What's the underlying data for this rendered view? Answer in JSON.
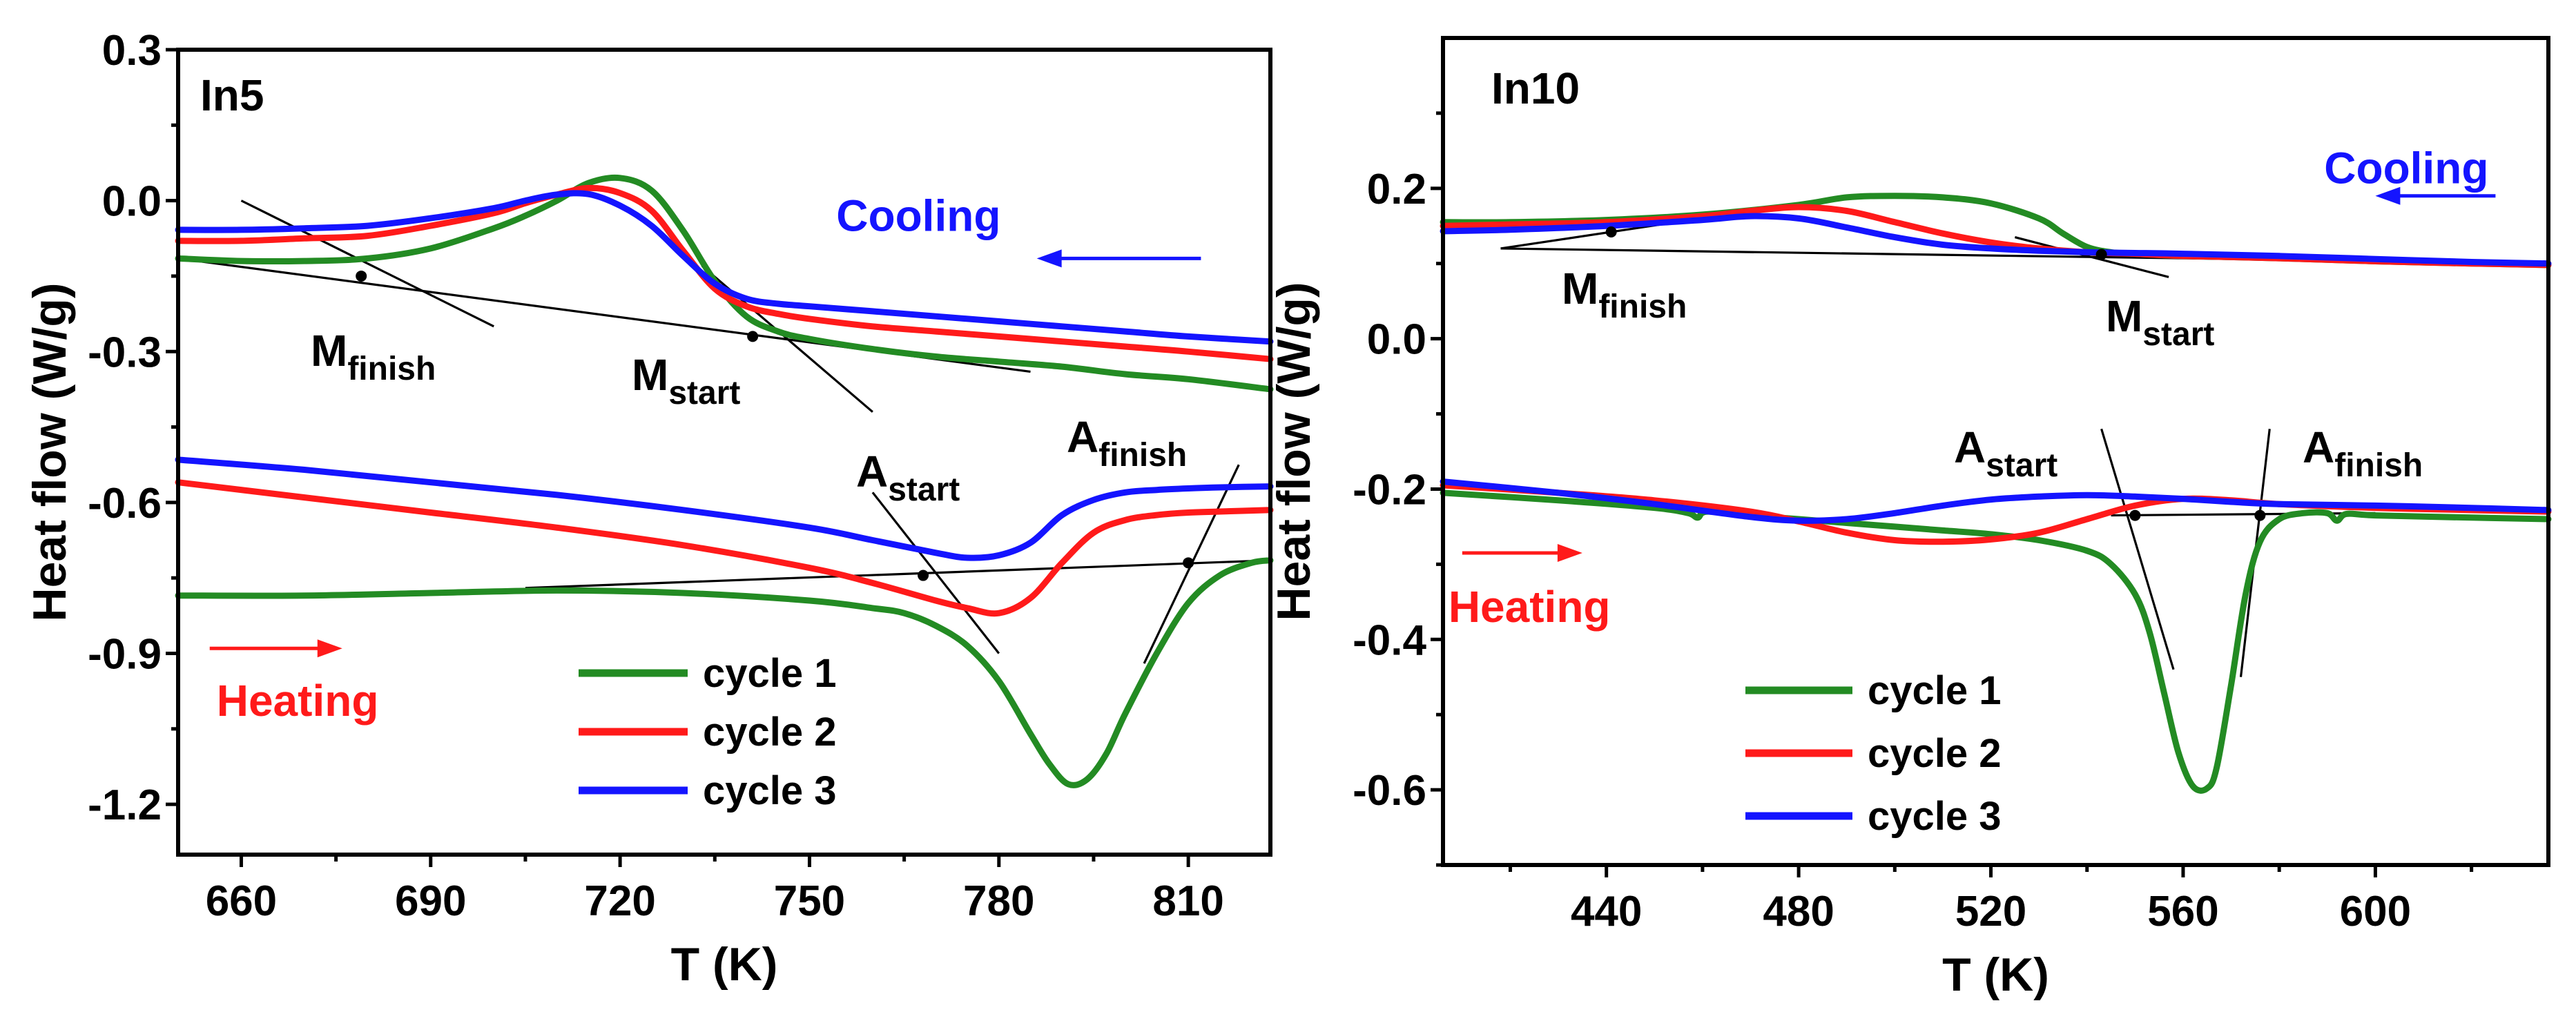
{
  "colors": {
    "cycle 1": "#238b23",
    "cycle 2": "#ff1a1a",
    "cycle 3": "#1414ff",
    "cooling": "#1414ff",
    "heating": "#ff1a1a"
  },
  "chart_data": [
    {
      "type": "line",
      "panel_label": "In5",
      "xlabel": "T (K)",
      "ylabel": "Heat flow (W/g)",
      "xlim": [
        650,
        823
      ],
      "ylim": [
        -1.3,
        0.3
      ],
      "xticks": [
        660,
        690,
        720,
        750,
        780,
        810
      ],
      "yticks": [
        0.3,
        0.0,
        -0.3,
        -0.6,
        -0.9,
        -1.2
      ],
      "ytick_labels": [
        "0.3",
        "0.0",
        "-0.3",
        "-0.6",
        "-0.9",
        "-1.2"
      ],
      "legend": [
        "cycle 1",
        "cycle 2",
        "cycle 3"
      ],
      "direction_labels": {
        "cooling": {
          "text": "Cooling",
          "arrow_from": 812,
          "arrow_to": 786,
          "arrow_y": -0.115
        },
        "heating": {
          "text": "Heating",
          "arrow_from": 655,
          "arrow_to": 676,
          "arrow_y": -0.89
        }
      },
      "series": [
        {
          "name": "cycle 1",
          "branch": "cooling",
          "x": [
            650,
            660,
            670,
            680,
            690,
            700,
            705,
            710,
            715,
            720,
            725,
            730,
            735,
            740,
            745,
            750,
            760,
            770,
            780,
            790,
            800,
            810,
            823
          ],
          "y": [
            -0.115,
            -0.12,
            -0.12,
            -0.115,
            -0.095,
            -0.055,
            -0.03,
            0.0,
            0.035,
            0.045,
            0.02,
            -0.06,
            -0.16,
            -0.23,
            -0.26,
            -0.275,
            -0.295,
            -0.31,
            -0.32,
            -0.33,
            -0.345,
            -0.355,
            -0.375
          ]
        },
        {
          "name": "cycle 2",
          "branch": "cooling",
          "x": [
            650,
            660,
            670,
            680,
            690,
            700,
            705,
            710,
            715,
            720,
            725,
            730,
            735,
            740,
            745,
            750,
            760,
            770,
            780,
            790,
            800,
            810,
            823
          ],
          "y": [
            -0.08,
            -0.08,
            -0.075,
            -0.07,
            -0.05,
            -0.025,
            -0.005,
            0.012,
            0.025,
            0.015,
            -0.02,
            -0.1,
            -0.175,
            -0.21,
            -0.225,
            -0.235,
            -0.25,
            -0.26,
            -0.27,
            -0.28,
            -0.29,
            -0.3,
            -0.315
          ]
        },
        {
          "name": "cycle 3",
          "branch": "cooling",
          "x": [
            650,
            660,
            670,
            680,
            690,
            700,
            705,
            710,
            715,
            720,
            725,
            730,
            735,
            740,
            745,
            750,
            760,
            770,
            780,
            790,
            800,
            810,
            823
          ],
          "y": [
            -0.058,
            -0.058,
            -0.055,
            -0.05,
            -0.035,
            -0.015,
            0.0,
            0.012,
            0.013,
            -0.01,
            -0.05,
            -0.11,
            -0.165,
            -0.195,
            -0.205,
            -0.21,
            -0.22,
            -0.23,
            -0.24,
            -0.25,
            -0.26,
            -0.27,
            -0.28
          ]
        },
        {
          "name": "cycle 1",
          "branch": "heating",
          "x": [
            650,
            670,
            690,
            710,
            730,
            750,
            760,
            765,
            770,
            775,
            780,
            785,
            788,
            791,
            794,
            797,
            800,
            805,
            810,
            815,
            820,
            823
          ],
          "y": [
            -0.785,
            -0.785,
            -0.78,
            -0.775,
            -0.78,
            -0.795,
            -0.81,
            -0.82,
            -0.845,
            -0.885,
            -0.955,
            -1.06,
            -1.12,
            -1.16,
            -1.15,
            -1.1,
            -1.02,
            -0.9,
            -0.8,
            -0.745,
            -0.72,
            -0.715
          ]
        },
        {
          "name": "cycle 2",
          "branch": "heating",
          "x": [
            650,
            670,
            690,
            710,
            730,
            750,
            760,
            770,
            775,
            780,
            785,
            790,
            795,
            800,
            805,
            810,
            815,
            823
          ],
          "y": [
            -0.56,
            -0.59,
            -0.62,
            -0.65,
            -0.685,
            -0.73,
            -0.76,
            -0.795,
            -0.81,
            -0.82,
            -0.79,
            -0.72,
            -0.66,
            -0.635,
            -0.625,
            -0.62,
            -0.618,
            -0.615
          ]
        },
        {
          "name": "cycle 3",
          "branch": "heating",
          "x": [
            650,
            670,
            690,
            710,
            730,
            750,
            760,
            770,
            775,
            780,
            785,
            790,
            795,
            800,
            805,
            810,
            815,
            823
          ],
          "y": [
            -0.515,
            -0.535,
            -0.56,
            -0.585,
            -0.615,
            -0.65,
            -0.675,
            -0.7,
            -0.71,
            -0.705,
            -0.68,
            -0.625,
            -0.595,
            -0.58,
            -0.575,
            -0.572,
            -0.57,
            -0.568
          ]
        }
      ],
      "annotations": [
        {
          "main": "M",
          "sub": "finish",
          "point": [
            679,
            -0.15
          ]
        },
        {
          "main": "M",
          "sub": "start",
          "point": [
            741,
            -0.27
          ]
        },
        {
          "main": "A",
          "sub": "start",
          "point": [
            768,
            -0.745
          ]
        },
        {
          "main": "A",
          "sub": "finish",
          "point": [
            810,
            -0.72
          ]
        }
      ]
    },
    {
      "type": "line",
      "panel_label": "In10",
      "xlabel": "T (K)",
      "ylabel": "Heat flow (W/g)",
      "xlim": [
        406,
        636
      ],
      "ylim": [
        -0.7,
        0.4
      ],
      "xticks": [
        440,
        480,
        520,
        560,
        600
      ],
      "yticks": [
        0.2,
        0.0,
        -0.2,
        -0.4,
        -0.6
      ],
      "ytick_labels": [
        "0.2",
        "0.0",
        "-0.2",
        "-0.4",
        "-0.6"
      ],
      "legend": [
        "cycle 1",
        "cycle 2",
        "cycle 3"
      ],
      "direction_labels": {
        "cooling": {
          "text": "Cooling",
          "arrow_from": 625,
          "arrow_to": 600,
          "arrow_y": 0.19
        },
        "heating": {
          "text": "Heating",
          "arrow_from": 410,
          "arrow_to": 435,
          "arrow_y": -0.285
        }
      },
      "series": [
        {
          "name": "cycle 1",
          "branch": "cooling",
          "x": [
            406,
            420,
            440,
            460,
            480,
            490,
            500,
            510,
            520,
            530,
            535,
            540,
            545,
            550,
            560,
            580,
            600,
            620,
            636
          ],
          "y": [
            0.155,
            0.155,
            0.158,
            0.165,
            0.178,
            0.188,
            0.19,
            0.188,
            0.18,
            0.16,
            0.14,
            0.122,
            0.115,
            0.113,
            0.11,
            0.107,
            0.103,
            0.1,
            0.098
          ]
        },
        {
          "name": "cycle 2",
          "branch": "cooling",
          "x": [
            406,
            420,
            440,
            460,
            470,
            480,
            490,
            500,
            510,
            520,
            530,
            540,
            550,
            560,
            580,
            600,
            620,
            636
          ],
          "y": [
            0.15,
            0.152,
            0.155,
            0.163,
            0.17,
            0.175,
            0.17,
            0.155,
            0.14,
            0.128,
            0.12,
            0.115,
            0.113,
            0.11,
            0.107,
            0.103,
            0.1,
            0.098
          ]
        },
        {
          "name": "cycle 3",
          "branch": "cooling",
          "x": [
            406,
            420,
            440,
            460,
            470,
            480,
            490,
            500,
            510,
            520,
            530,
            540,
            550,
            560,
            580,
            600,
            620,
            636
          ],
          "y": [
            0.143,
            0.145,
            0.15,
            0.158,
            0.163,
            0.16,
            0.148,
            0.135,
            0.125,
            0.12,
            0.117,
            0.115,
            0.114,
            0.113,
            0.11,
            0.106,
            0.102,
            0.1
          ]
        },
        {
          "name": "cycle 1",
          "branch": "heating",
          "x": [
            406,
            430,
            450,
            457,
            459,
            461,
            470,
            480,
            490,
            500,
            510,
            520,
            530,
            540,
            545,
            550,
            553,
            556,
            559,
            562,
            565,
            567,
            570,
            573,
            576,
            580,
            585,
            590,
            592,
            594,
            600,
            620,
            636
          ],
          "y": [
            -0.205,
            -0.215,
            -0.225,
            -0.232,
            -0.238,
            -0.23,
            -0.235,
            -0.24,
            -0.245,
            -0.25,
            -0.255,
            -0.26,
            -0.268,
            -0.282,
            -0.3,
            -0.34,
            -0.39,
            -0.47,
            -0.55,
            -0.595,
            -0.598,
            -0.57,
            -0.46,
            -0.34,
            -0.27,
            -0.24,
            -0.232,
            -0.232,
            -0.242,
            -0.233,
            -0.235,
            -0.238,
            -0.24
          ]
        },
        {
          "name": "cycle 2",
          "branch": "heating",
          "x": [
            406,
            430,
            450,
            470,
            480,
            490,
            500,
            510,
            520,
            530,
            540,
            550,
            560,
            570,
            580,
            600,
            620,
            636
          ],
          "y": [
            -0.195,
            -0.205,
            -0.215,
            -0.23,
            -0.243,
            -0.258,
            -0.268,
            -0.27,
            -0.267,
            -0.258,
            -0.24,
            -0.222,
            -0.213,
            -0.215,
            -0.22,
            -0.225,
            -0.228,
            -0.23
          ]
        },
        {
          "name": "cycle 3",
          "branch": "heating",
          "x": [
            406,
            430,
            450,
            470,
            480,
            490,
            500,
            510,
            520,
            530,
            540,
            550,
            560,
            570,
            580,
            600,
            620,
            636
          ],
          "y": [
            -0.19,
            -0.205,
            -0.22,
            -0.237,
            -0.242,
            -0.24,
            -0.232,
            -0.222,
            -0.214,
            -0.21,
            -0.208,
            -0.21,
            -0.213,
            -0.217,
            -0.22,
            -0.222,
            -0.225,
            -0.228
          ]
        }
      ],
      "annotations": [
        {
          "main": "M",
          "sub": "finish",
          "point": [
            441,
            0.142
          ]
        },
        {
          "main": "M",
          "sub": "start",
          "point": [
            543,
            0.112
          ]
        },
        {
          "main": "A",
          "sub": "start",
          "point": [
            550,
            -0.235
          ]
        },
        {
          "main": "A",
          "sub": "finish",
          "point": [
            576,
            -0.235
          ]
        }
      ]
    }
  ]
}
